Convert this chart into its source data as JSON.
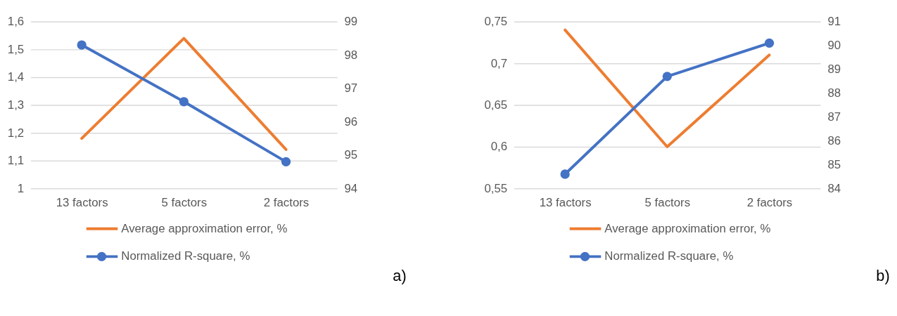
{
  "chart_data": [
    {
      "type": "line",
      "categories": [
        "13 factors",
        "5 factors",
        "2 factors"
      ],
      "series": [
        {
          "name": "Average approximation error, %",
          "color": "#ed7d31",
          "values": [
            1.18,
            1.54,
            1.14
          ],
          "marker": "none"
        },
        {
          "name": "Normalized R-square, %",
          "color": "#4472c4",
          "values": [
            98.3,
            96.6,
            94.8
          ],
          "axis": "y2",
          "marker": "circle"
        }
      ],
      "ylim": [
        1,
        1.6
      ],
      "yticks": [
        {
          "value": 1,
          "label": "1"
        },
        {
          "value": 1.1,
          "label": "1,1"
        },
        {
          "value": 1.2,
          "label": "1,2"
        },
        {
          "value": 1.3,
          "label": "1,3"
        },
        {
          "value": 1.4,
          "label": "1,4"
        },
        {
          "value": 1.5,
          "label": "1,5"
        },
        {
          "value": 1.6,
          "label": "1,6"
        }
      ],
      "y2lim": [
        94,
        99
      ],
      "y2ticks": [
        94,
        95,
        96,
        97,
        98,
        99
      ],
      "grid": "y",
      "legend": "bottom",
      "annotations": [
        "a)"
      ]
    },
    {
      "type": "line",
      "categories": [
        "13 factors",
        "5 factors",
        "2 factors"
      ],
      "series": [
        {
          "name": "Average approximation error, %",
          "color": "#ed7d31",
          "values": [
            0.74,
            0.6,
            0.71
          ],
          "marker": "none"
        },
        {
          "name": "Normalized R-square, %",
          "color": "#4472c4",
          "values": [
            84.6,
            88.7,
            90.1
          ],
          "axis": "y2",
          "marker": "circle"
        }
      ],
      "ylim": [
        0.55,
        0.75
      ],
      "yticks": [
        {
          "value": 0.55,
          "label": "0,55"
        },
        {
          "value": 0.6,
          "label": "0,6"
        },
        {
          "value": 0.65,
          "label": "0,65"
        },
        {
          "value": 0.7,
          "label": "0,7"
        },
        {
          "value": 0.75,
          "label": "0,75"
        }
      ],
      "y2lim": [
        84,
        91
      ],
      "y2ticks": [
        84,
        85,
        86,
        87,
        88,
        89,
        90,
        91
      ],
      "grid": "y",
      "legend": "bottom",
      "annotations": [
        "b)"
      ]
    }
  ]
}
